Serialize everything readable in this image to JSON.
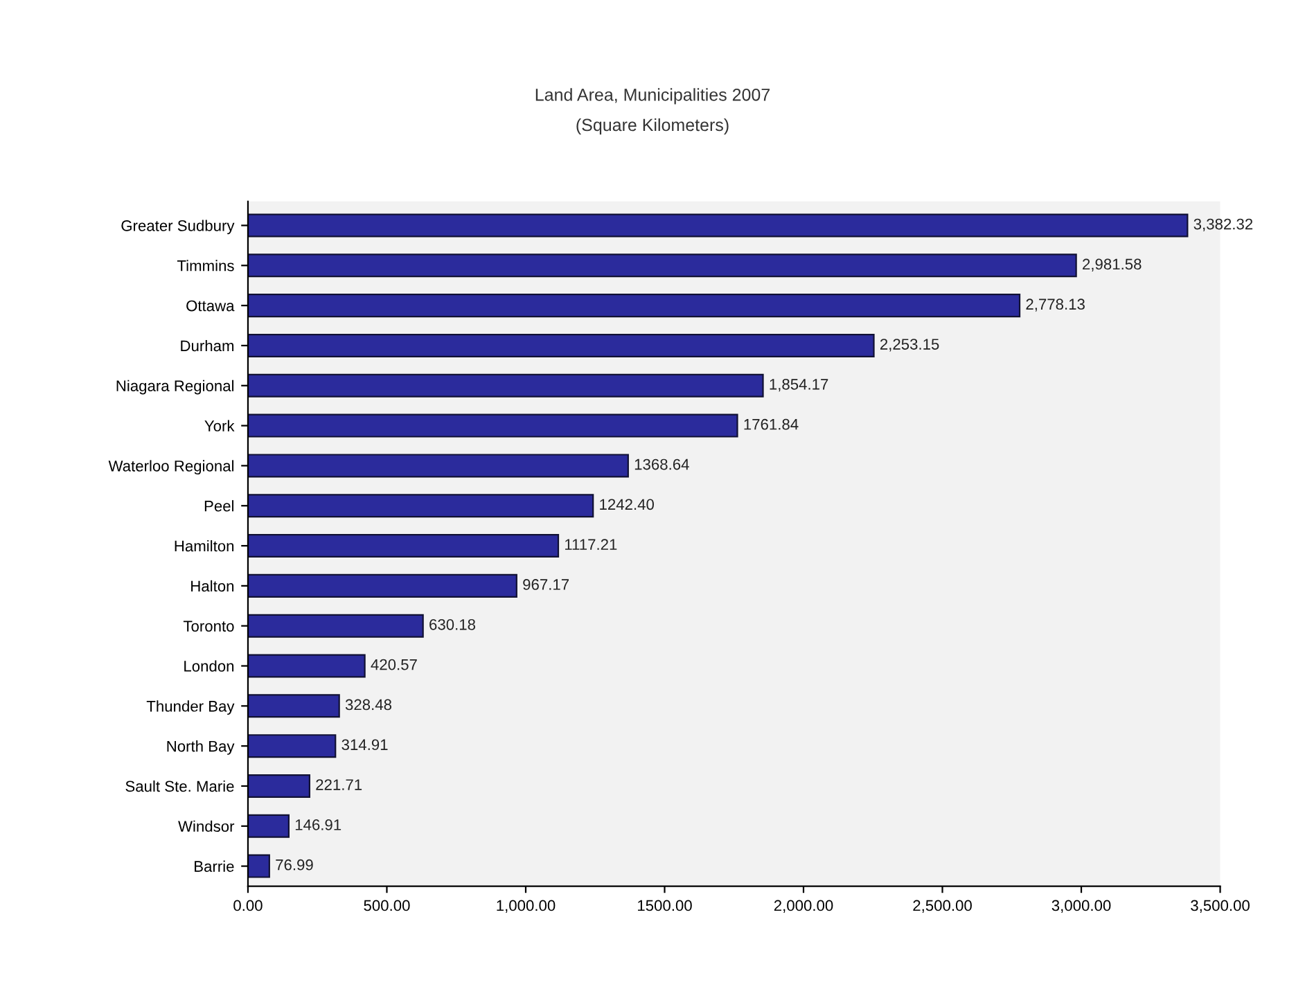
{
  "chart_data": {
    "type": "bar",
    "orientation": "horizontal",
    "title": "Land Area, Municipalities 2007",
    "subtitle": "(Square Kilometers)",
    "categories": [
      "Greater Sudbury",
      "Timmins",
      "Ottawa",
      "Durham",
      "Niagara Regional",
      "York",
      "Waterloo Regional",
      "Peel",
      "Hamilton",
      "Halton",
      "Toronto",
      "London",
      "Thunder Bay",
      "North Bay",
      "Sault Ste. Marie",
      "Windsor",
      "Barrie"
    ],
    "values": [
      3382.32,
      2981.58,
      2778.13,
      2253.15,
      1854.17,
      1761.84,
      1368.64,
      1242.4,
      1117.21,
      967.17,
      630.18,
      420.57,
      328.48,
      314.91,
      221.71,
      146.91,
      76.99
    ],
    "value_labels": [
      "3,382.32",
      "2,981.58",
      "2,778.13",
      "2,253.15",
      "1,854.17",
      "1761.84",
      "1368.64",
      "1242.40",
      "1117.21",
      "967.17",
      "630.18",
      "420.57",
      "328.48",
      "314.91",
      "221.71",
      "146.91",
      "76.99"
    ],
    "color": "#2b2b9c",
    "xlim": [
      0,
      3500
    ],
    "xticks": [
      {
        "value": 0,
        "label": "0.00"
      },
      {
        "value": 500,
        "label": "500.00"
      },
      {
        "value": 1000,
        "label": "1,000.00"
      },
      {
        "value": 1500,
        "label": "1500.00"
      },
      {
        "value": 2000,
        "label": "2,000.00"
      },
      {
        "value": 2500,
        "label": "2,500.00"
      },
      {
        "value": 3000,
        "label": "3,000.00"
      },
      {
        "value": 3500,
        "label": "3,500.00"
      }
    ],
    "grid": false,
    "legend": false
  }
}
